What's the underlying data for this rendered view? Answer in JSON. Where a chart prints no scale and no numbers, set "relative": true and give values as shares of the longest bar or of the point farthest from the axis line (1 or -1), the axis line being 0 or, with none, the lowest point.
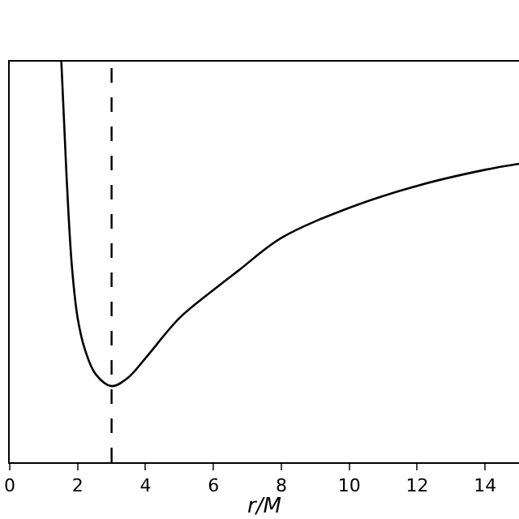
{
  "chart_data": {
    "type": "line",
    "xlabel": "r/M",
    "relative": true,
    "x": [
      1.52,
      1.67,
      1.83,
      2.0,
      2.22,
      2.53,
      3.0,
      3.47,
      4.0,
      5.0,
      6.0,
      6.76,
      8.0,
      10.0,
      12.0,
      14.0,
      15.0
    ],
    "series": [
      {
        "color": "#000000",
        "values": [
          1.0,
          0.72,
          0.49,
          0.36,
          0.28,
          0.22,
          0.19,
          0.21,
          0.26,
          0.36,
          0.43,
          0.48,
          0.56,
          0.635,
          0.69,
          0.73,
          0.745
        ]
      }
    ],
    "xlim": [
      0,
      15
    ],
    "xticks": [
      0,
      2,
      4,
      6,
      8,
      10,
      12,
      14
    ],
    "ref_lines": [
      {
        "axis": "x",
        "value": 3,
        "color": "#000000",
        "line_style": "dashed"
      }
    ],
    "legend": false,
    "marker": "none",
    "line_style": "solid"
  }
}
